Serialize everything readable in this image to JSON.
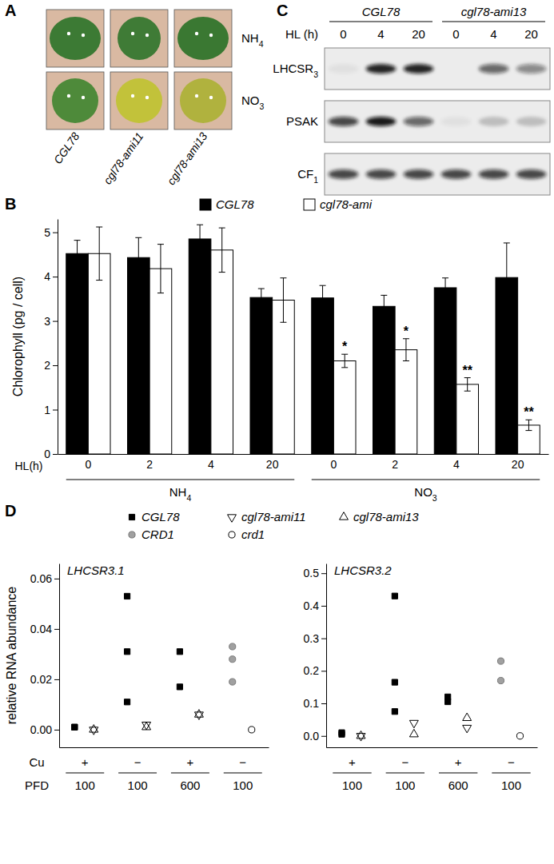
{
  "panel_a": {
    "label": "A",
    "columns": [
      "CGL78",
      "cgl78-ami11",
      "cgl78-ami13"
    ],
    "rows": [
      {
        "label": "NH4",
        "colors": [
          "#3c7a34",
          "#3f7b36",
          "#3a7832"
        ]
      },
      {
        "label": "NO3",
        "colors": [
          "#4e8a3a",
          "#c2c23a",
          "#b0b23e"
        ]
      }
    ]
  },
  "panel_c": {
    "label": "C",
    "groups": [
      "CGL78",
      "cgl78-ami13"
    ],
    "time_label": "HL (h)",
    "times": [
      0,
      4,
      20,
      0,
      4,
      20
    ],
    "rows": [
      {
        "label": "LHCSR3",
        "bands": [
          0.05,
          0.9,
          0.9,
          0.0,
          0.6,
          0.45
        ]
      },
      {
        "label": "PSAK",
        "bands": [
          0.75,
          0.95,
          0.6,
          0.05,
          0.2,
          0.2
        ]
      },
      {
        "label": "CF1",
        "bands": [
          0.75,
          0.75,
          0.75,
          0.75,
          0.75,
          0.75
        ]
      }
    ]
  },
  "chart_data": [
    {
      "type": "bar",
      "panel_label": "B",
      "categories": [
        "0",
        "2",
        "4",
        "20",
        "0",
        "2",
        "4",
        "20"
      ],
      "group_labels": [
        "NH4",
        "NO3"
      ],
      "xlabel": "HL(h)",
      "ylabel": "Chlorophyll (pg / cell)",
      "ylim": [
        0,
        5.3
      ],
      "yticks": [
        0,
        1,
        2,
        3,
        4,
        5
      ],
      "legend": "top",
      "series": [
        {
          "name": "CGL78",
          "color": "#000000",
          "values": [
            4.52,
            4.43,
            4.85,
            3.53,
            3.52,
            3.33,
            3.75,
            3.98
          ],
          "errors": [
            0.3,
            0.45,
            0.32,
            0.2,
            0.28,
            0.25,
            0.22,
            0.78
          ]
        },
        {
          "name": "cgl78-ami",
          "color": "#ffffff",
          "values": [
            4.52,
            4.18,
            4.6,
            3.47,
            2.1,
            2.35,
            1.57,
            0.65
          ],
          "errors": [
            0.6,
            0.55,
            0.5,
            0.5,
            0.15,
            0.25,
            0.15,
            0.12
          ],
          "annotations": [
            null,
            null,
            null,
            null,
            "*",
            "*",
            "**",
            "**"
          ]
        }
      ]
    },
    {
      "type": "scatter",
      "panel_label": "D",
      "title": "LHCSR3.1",
      "ylabel": "relative RNA abundance",
      "legend": "top",
      "ylim": [
        -0.007,
        0.066
      ],
      "yticks": [
        {
          "value": 0,
          "label": "0.00"
        },
        {
          "value": 0.02,
          "label": "0.02"
        },
        {
          "value": 0.04,
          "label": "0.04"
        },
        {
          "value": 0.06,
          "label": "0.06"
        }
      ],
      "x_rows": [
        {
          "label": "Cu",
          "values": [
            "+",
            "−",
            "+",
            "−"
          ]
        },
        {
          "label": "PFD",
          "values": [
            100,
            100,
            600,
            100
          ]
        }
      ],
      "series": [
        {
          "name": "CGL78",
          "marker": "square",
          "color": "#000000",
          "values": [
            [
              0.001,
              0.001
            ],
            [
              0.053,
              0.031,
              0.011
            ],
            [
              0.031,
              0.017
            ],
            null
          ]
        },
        {
          "name": "cgl78-ami11",
          "marker": "triangle-down-open",
          "color": "#000000",
          "values": [
            [
              0.0
            ],
            [
              0.002
            ],
            [
              0.006
            ],
            null
          ]
        },
        {
          "name": "cgl78-ami13",
          "marker": "triangle-up-open",
          "color": "#000000",
          "values": [
            [
              0.0
            ],
            [
              0.001
            ],
            [
              0.006
            ],
            null
          ]
        },
        {
          "name": "CRD1",
          "marker": "circle",
          "color": "#a0a0a0",
          "values": [
            null,
            null,
            null,
            [
              0.033,
              0.028,
              0.019
            ]
          ]
        },
        {
          "name": "crd1",
          "marker": "circle-open",
          "color": "#000000",
          "values": [
            null,
            null,
            null,
            [
              0.0
            ]
          ]
        }
      ]
    },
    {
      "type": "scatter",
      "title": "LHCSR3.2",
      "ylim": [
        -0.035,
        0.53
      ],
      "yticks": [
        {
          "value": 0,
          "label": "0.0"
        },
        {
          "value": 0.1,
          "label": "0.1"
        },
        {
          "value": 0.2,
          "label": "0.2"
        },
        {
          "value": 0.3,
          "label": "0.3"
        },
        {
          "value": 0.4,
          "label": "0.4"
        },
        {
          "value": 0.5,
          "label": "0.5"
        }
      ],
      "x_rows": [
        {
          "values": [
            "+",
            "−",
            "+",
            "−"
          ]
        },
        {
          "values": [
            100,
            100,
            600,
            100
          ]
        }
      ],
      "series": [
        {
          "marker": "square",
          "color": "#000000",
          "values": [
            [
              0.01,
              0.005
            ],
            [
              0.43,
              0.165,
              0.075
            ],
            [
              0.12,
              0.105
            ],
            null
          ]
        },
        {
          "marker": "triangle-down-open",
          "color": "#000000",
          "values": [
            [
              0.0
            ],
            [
              0.04
            ],
            [
              0.025
            ],
            null
          ]
        },
        {
          "marker": "triangle-up-open",
          "color": "#000000",
          "values": [
            [
              0.0
            ],
            [
              0.005
            ],
            [
              0.055
            ],
            null
          ]
        },
        {
          "marker": "circle",
          "color": "#a0a0a0",
          "values": [
            null,
            null,
            null,
            [
              0.23,
              0.17
            ]
          ]
        },
        {
          "marker": "circle-open",
          "color": "#000000",
          "values": [
            null,
            null,
            null,
            [
              0.0
            ]
          ]
        }
      ]
    }
  ]
}
